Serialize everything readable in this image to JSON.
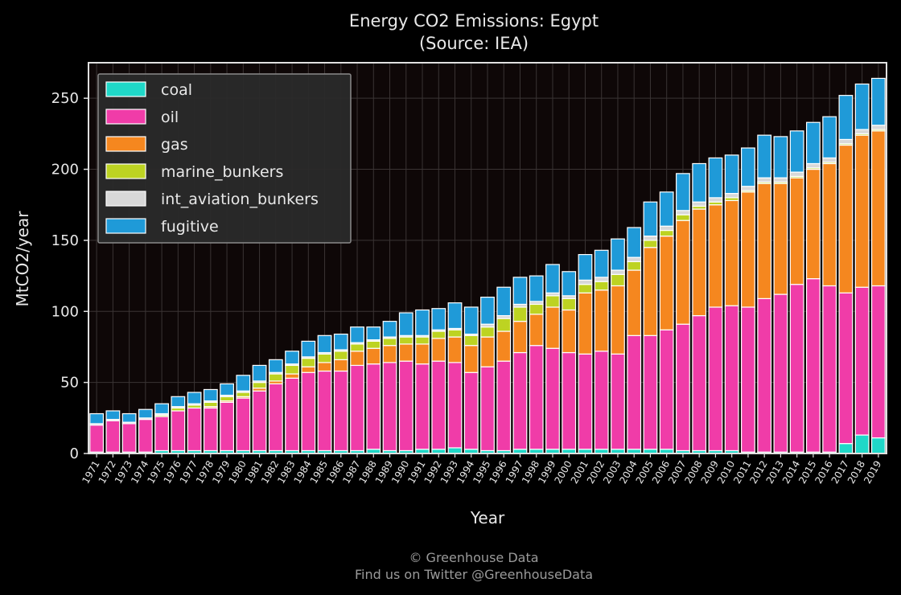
{
  "chart_data": {
    "type": "bar",
    "stacked": true,
    "title": "Energy CO2 Emissions: Egypt",
    "subtitle": "(Source: IEA)",
    "xlabel": "Year",
    "ylabel": "MtCO2/year",
    "ylim": [
      0,
      275
    ],
    "yticks": [
      0,
      50,
      100,
      150,
      200,
      250
    ],
    "grid": true,
    "legend_position": "top-left",
    "categories": [
      "1971",
      "1972",
      "1973",
      "1974",
      "1975",
      "1976",
      "1977",
      "1978",
      "1979",
      "1980",
      "1981",
      "1982",
      "1983",
      "1984",
      "1985",
      "1986",
      "1987",
      "1988",
      "1989",
      "1990",
      "1991",
      "1992",
      "1993",
      "1994",
      "1995",
      "1996",
      "1997",
      "1998",
      "1999",
      "2000",
      "2001",
      "2002",
      "2003",
      "2004",
      "2005",
      "2006",
      "2007",
      "2008",
      "2009",
      "2010",
      "2011",
      "2012",
      "2013",
      "2014",
      "2015",
      "2016",
      "2017",
      "2018",
      "2019"
    ],
    "series": [
      {
        "name": "coal",
        "color": "#1fd8c8",
        "values": [
          1,
          1,
          1,
          1,
          2,
          2,
          2,
          2,
          2,
          2,
          2,
          2,
          2,
          2,
          2,
          2,
          2,
          3,
          2,
          2,
          3,
          3,
          4,
          3,
          2,
          2,
          3,
          3,
          3,
          3,
          3,
          3,
          3,
          3,
          3,
          3,
          2,
          2,
          2,
          2,
          1,
          1,
          1,
          1,
          1,
          1,
          7,
          13,
          11
        ]
      },
      {
        "name": "oil",
        "color": "#f03ca8",
        "values": [
          19,
          22,
          20,
          23,
          24,
          28,
          30,
          30,
          34,
          37,
          42,
          47,
          51,
          55,
          56,
          56,
          60,
          60,
          62,
          63,
          60,
          62,
          60,
          54,
          59,
          63,
          68,
          73,
          71,
          68,
          67,
          69,
          67,
          80,
          80,
          84,
          89,
          95,
          101,
          102,
          102,
          108,
          111,
          118,
          122,
          117,
          106,
          104,
          107
        ]
      },
      {
        "name": "gas",
        "color": "#f5871f",
        "values": [
          0,
          0,
          0,
          0,
          0,
          0,
          0,
          1,
          1,
          1,
          2,
          2,
          3,
          4,
          6,
          8,
          10,
          11,
          12,
          12,
          14,
          16,
          18,
          19,
          21,
          21,
          22,
          22,
          29,
          30,
          43,
          43,
          48,
          46,
          62,
          66,
          73,
          75,
          72,
          74,
          81,
          81,
          78,
          75,
          77,
          86,
          104,
          107,
          109
        ]
      },
      {
        "name": "marine_bunkers",
        "color": "#bdd322",
        "values": [
          0,
          0,
          0,
          0,
          1,
          2,
          2,
          3,
          3,
          3,
          4,
          5,
          6,
          6,
          6,
          6,
          5,
          5,
          5,
          5,
          5,
          5,
          5,
          7,
          7,
          9,
          10,
          7,
          8,
          8,
          6,
          6,
          8,
          6,
          5,
          4,
          4,
          2,
          2,
          2,
          1,
          1,
          1,
          1,
          1,
          1,
          1,
          1,
          1
        ]
      },
      {
        "name": "int_aviation_bunkers",
        "color": "#d8d8d8",
        "values": [
          1,
          1,
          1,
          1,
          1,
          1,
          1,
          1,
          1,
          1,
          1,
          1,
          1,
          1,
          1,
          1,
          1,
          1,
          1,
          1,
          1,
          1,
          1,
          1,
          2,
          2,
          2,
          2,
          2,
          2,
          3,
          3,
          3,
          3,
          3,
          3,
          3,
          3,
          3,
          3,
          3,
          3,
          3,
          3,
          3,
          3,
          3,
          3,
          3
        ]
      },
      {
        "name": "fugitive",
        "color": "#1f9ad8",
        "values": [
          7,
          6,
          6,
          6,
          7,
          7,
          8,
          8,
          8,
          11,
          11,
          9,
          9,
          11,
          12,
          11,
          11,
          9,
          11,
          16,
          18,
          15,
          18,
          19,
          19,
          20,
          19,
          18,
          20,
          17,
          18,
          19,
          22,
          21,
          24,
          24,
          26,
          27,
          28,
          27,
          27,
          30,
          29,
          29,
          29,
          29,
          31,
          32,
          33
        ]
      }
    ]
  },
  "credits": {
    "line1": "© Greenhouse Data",
    "line2": "Find us on Twitter @GreenhouseData"
  }
}
